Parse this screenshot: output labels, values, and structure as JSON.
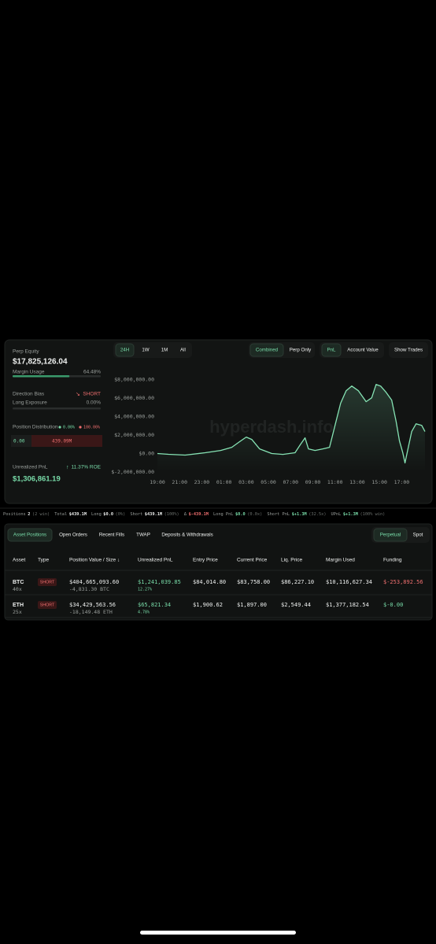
{
  "summary": {
    "perp_equity": {
      "label": "Perp Equity",
      "value": "$17,825,126.04"
    },
    "margin_usage": {
      "label": "Margin Usage",
      "value": 64.48,
      "value_label": "64.48%"
    },
    "direction_bias": {
      "label": "Direction Bias",
      "value": "SHORT"
    },
    "long_exposure": {
      "label": "Long Exposure",
      "value": 0,
      "value_label": "0.00%"
    },
    "position_distribution": {
      "label": "Position Distribution",
      "long_pct": "0.00%",
      "short_pct": "100.00%",
      "long_value": "0.00",
      "short_value": "439.09M"
    },
    "unrealized_pnl": {
      "label": "Unrealized PnL",
      "roe": "11.37% ROE",
      "value": "$1,306,861.19"
    }
  },
  "chart_controls": {
    "ranges": [
      "24H",
      "1W",
      "1M",
      "All"
    ],
    "active_range": 0,
    "views": [
      "Combined",
      "Perp Only"
    ],
    "active_view": 0,
    "metrics": [
      "PnL",
      "Account Value"
    ],
    "active_metric": 0,
    "show_trades": "Show Trades"
  },
  "chart_data": {
    "type": "line",
    "watermark": "hyperdash.info",
    "color": "#86e3b4",
    "grid": false,
    "x": [
      0,
      1,
      2.5,
      4.3,
      5.7,
      6.7,
      7.4,
      8,
      8.5,
      9.2,
      10.3,
      11.3,
      12.4,
      12.9,
      13.3,
      13.6,
      14.2,
      14.9,
      15.5,
      16,
      16.5,
      17,
      17.5,
      18.1,
      18.8,
      19.3,
      19.7,
      20.1,
      20.6,
      21.1,
      21.5,
      21.8,
      22.1,
      22.3,
      22.6,
      22.9,
      23.3,
      23.8,
      24.1
    ],
    "values": [
      0,
      -80000,
      -170000,
      90000,
      340000,
      680000,
      1280000,
      1790000,
      1530000,
      510000,
      0,
      -90000,
      90000,
      1020000,
      1700000,
      510000,
      340000,
      510000,
      680000,
      3060000,
      5450000,
      6810000,
      7320000,
      6810000,
      5620000,
      6040000,
      7490000,
      7320000,
      6640000,
      5790000,
      3490000,
      1360000,
      90000,
      -1020000,
      680000,
      2380000,
      3230000,
      3060000,
      2380000
    ],
    "xlim": [
      0,
      24.1
    ],
    "xticks": [
      {
        "value": 0,
        "label": "19:00"
      },
      {
        "value": 2,
        "label": "21:00"
      },
      {
        "value": 4,
        "label": "23:00"
      },
      {
        "value": 6,
        "label": "01:00"
      },
      {
        "value": 8,
        "label": "03:00"
      },
      {
        "value": 10,
        "label": "05:00"
      },
      {
        "value": 12,
        "label": "07:00"
      },
      {
        "value": 14,
        "label": "09:00"
      },
      {
        "value": 16,
        "label": "11:00"
      },
      {
        "value": 18,
        "label": "13:00"
      },
      {
        "value": 20,
        "label": "15:00"
      },
      {
        "value": 22,
        "label": "17:00"
      }
    ],
    "ylim": [
      -2000000,
      9000000
    ],
    "yticks": [
      {
        "value": 8000000,
        "label": "$8,000,000.00"
      },
      {
        "value": 6000000,
        "label": "$6,000,000.00"
      },
      {
        "value": 4000000,
        "label": "$4,000,000.00"
      },
      {
        "value": 2000000,
        "label": "$2,000,000.00"
      },
      {
        "value": 0,
        "label": "$0.00"
      },
      {
        "value": -2000000,
        "label": "$-2,000,000.00"
      }
    ]
  },
  "stats_bar": [
    {
      "label": "Positions",
      "value": "2",
      "note": "(2 win)",
      "tone": "plain"
    },
    {
      "label": "Total",
      "value": "$439.1M",
      "tone": "plain"
    },
    {
      "label": "Long",
      "value": "$0.0",
      "note": "(0%)",
      "tone": "plain"
    },
    {
      "label": "Short",
      "value": "$439.1M",
      "note": "(100%)",
      "tone": "plain"
    },
    {
      "label": "Δ",
      "value": "$-439.1M",
      "tone": "neg"
    },
    {
      "label": "Long PnL",
      "value": "$0.0",
      "note": "(0.0x)",
      "tone": "pos"
    },
    {
      "label": "Short PnL",
      "value": "$+1.3M",
      "note": "(32.5x)",
      "tone": "pos"
    },
    {
      "label": "UPnL",
      "value": "$+1.3M",
      "note": "(100% win)",
      "tone": "pos"
    }
  ],
  "tabs": {
    "left": [
      "Asset Positions",
      "Open Orders",
      "Recent Fills",
      "TWAP",
      "Deposits & Withdrawals"
    ],
    "active_left": 0,
    "right": [
      "Perpetual",
      "Spot"
    ],
    "active_right": 0
  },
  "table": {
    "columns": [
      "Asset",
      "Type",
      "Position Value / Size ↓",
      "Unrealized PnL",
      "Entry Price",
      "Current Price",
      "Liq. Price",
      "Margin Used",
      "Funding"
    ],
    "rows": [
      {
        "asset": "BTC",
        "leverage": "40x",
        "side": "SHORT",
        "position_value": "$404,665,093.60",
        "size": "-4,831.30 BTC",
        "pnl": "$1,241,039.85",
        "pnl_pct": "12.27%",
        "entry": "$84,014.80",
        "current": "$83,758.00",
        "liq": "$86,227.10",
        "margin": "$10,116,627.34",
        "funding": "$-253,892.56",
        "funding_tone": "neg"
      },
      {
        "asset": "ETH",
        "leverage": "25x",
        "side": "SHORT",
        "position_value": "$34,429,563.56",
        "size": "-18,149.48 ETH",
        "pnl": "$65,821.34",
        "pnl_pct": "4.78%",
        "entry": "$1,900.62",
        "current": "$1,897.00",
        "liq": "$2,549.44",
        "margin": "$1,377,182.54",
        "funding": "$-0.00",
        "funding_tone": "pos"
      }
    ]
  }
}
